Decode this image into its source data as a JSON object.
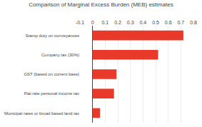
{
  "chart_data": {
    "type": "bar",
    "orientation": "horizontal",
    "title": "Comparison of Marginal Excess Burden (MEB) estimates",
    "categories": [
      "Stamp duty on conveyances",
      "Company tax (30%)",
      "GST (based on current base)",
      "Flat rate personal income tax",
      "Municipal rates or broad based land tax"
    ],
    "values": [
      0.72,
      0.52,
      0.19,
      0.17,
      0.06
    ],
    "color": "#e8392a",
    "xlim": [
      -0.1,
      0.8
    ],
    "xticks": [
      -0.1,
      0,
      0.1,
      0.2,
      0.3,
      0.4,
      0.5,
      0.6,
      0.7,
      0.8
    ],
    "grid": true
  }
}
